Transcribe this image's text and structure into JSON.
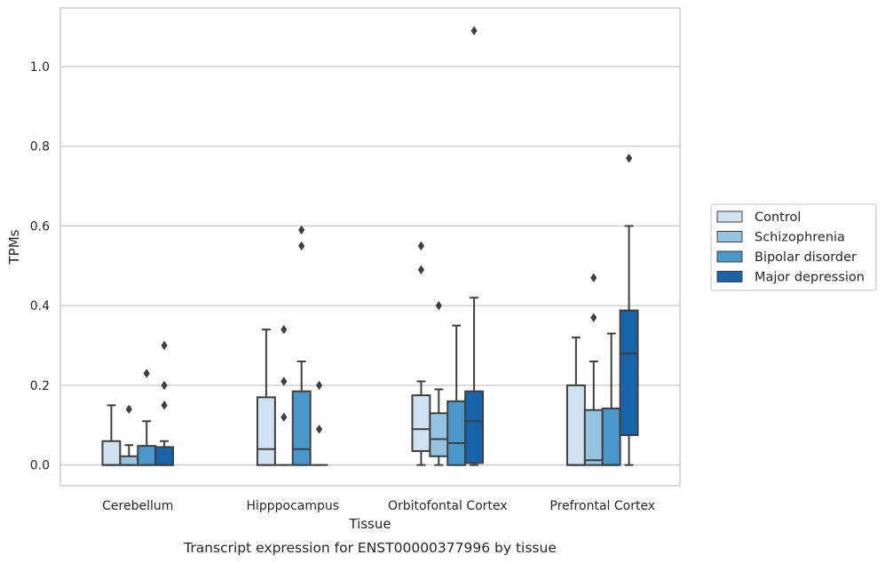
{
  "chart_data": {
    "type": "box",
    "title": "",
    "caption": "Transcript expression for ENST00000377996 by tissue",
    "xlabel": "Tissue",
    "ylabel": "TPMs",
    "ylim": [
      -0.052,
      1.147
    ],
    "yticks": [
      0.0,
      0.2,
      0.4,
      0.6,
      0.8,
      1.0
    ],
    "ytick_labels": [
      "0.0",
      "0.2",
      "0.4",
      "0.6",
      "0.8",
      "1.0"
    ],
    "grid": "horizontal",
    "legend_position": "right-center",
    "categories": [
      "Cerebellum",
      "Hipppocampus",
      "Orbitofontal Cortex",
      "Prefrontal Cortex"
    ],
    "series": [
      {
        "name": "Control",
        "color": "#d0e1f2",
        "boxes": [
          {
            "whislo": 0.0,
            "q1": 0.0,
            "med": 0.0,
            "q3": 0.06,
            "whishi": 0.15,
            "fliers": []
          },
          {
            "whislo": 0.0,
            "q1": 0.0,
            "med": 0.04,
            "q3": 0.17,
            "whishi": 0.34,
            "fliers": []
          },
          {
            "whislo": 0.0,
            "q1": 0.035,
            "med": 0.09,
            "q3": 0.175,
            "whishi": 0.21,
            "fliers": [
              0.49,
              0.55
            ]
          },
          {
            "whislo": 0.0,
            "q1": 0.0,
            "med": 0.0,
            "q3": 0.2,
            "whishi": 0.32,
            "fliers": []
          }
        ]
      },
      {
        "name": "Schizophrenia",
        "color": "#94c4df",
        "boxes": [
          {
            "whislo": 0.0,
            "q1": 0.0,
            "med": 0.0,
            "q3": 0.022,
            "whishi": 0.05,
            "fliers": [
              0.14
            ]
          },
          {
            "whislo": 0.0,
            "q1": 0.0,
            "med": 0.0,
            "q3": 0.0,
            "whishi": 0.0,
            "fliers": [
              0.12,
              0.21,
              0.34
            ]
          },
          {
            "whislo": 0.0,
            "q1": 0.022,
            "med": 0.065,
            "q3": 0.13,
            "whishi": 0.19,
            "fliers": [
              0.4
            ]
          },
          {
            "whislo": 0.0,
            "q1": 0.0,
            "med": 0.012,
            "q3": 0.138,
            "whishi": 0.26,
            "fliers": [
              0.37,
              0.47
            ]
          }
        ]
      },
      {
        "name": "Bipolar disorder",
        "color": "#4a98c9",
        "boxes": [
          {
            "whislo": 0.0,
            "q1": 0.0,
            "med": 0.0,
            "q3": 0.048,
            "whishi": 0.11,
            "fliers": [
              0.23
            ]
          },
          {
            "whislo": 0.0,
            "q1": 0.0,
            "med": 0.04,
            "q3": 0.185,
            "whishi": 0.26,
            "fliers": [
              0.55,
              0.59
            ]
          },
          {
            "whislo": 0.0,
            "q1": 0.0,
            "med": 0.055,
            "q3": 0.16,
            "whishi": 0.35,
            "fliers": []
          },
          {
            "whislo": 0.0,
            "q1": 0.0,
            "med": 0.0,
            "q3": 0.142,
            "whishi": 0.33,
            "fliers": []
          }
        ]
      },
      {
        "name": "Major depression",
        "color": "#1764ab",
        "boxes": [
          {
            "whislo": 0.0,
            "q1": 0.0,
            "med": 0.0,
            "q3": 0.045,
            "whishi": 0.06,
            "fliers": [
              0.15,
              0.2,
              0.3
            ]
          },
          {
            "whislo": 0.0,
            "q1": 0.0,
            "med": 0.0,
            "q3": 0.0,
            "whishi": 0.0,
            "fliers": [
              0.09,
              0.2
            ]
          },
          {
            "whislo": 0.0,
            "q1": 0.005,
            "med": 0.11,
            "q3": 0.185,
            "whishi": 0.42,
            "fliers": [
              1.09
            ]
          },
          {
            "whislo": 0.0,
            "q1": 0.075,
            "med": 0.28,
            "q3": 0.388,
            "whishi": 0.6,
            "fliers": [
              0.77
            ]
          }
        ]
      }
    ]
  }
}
